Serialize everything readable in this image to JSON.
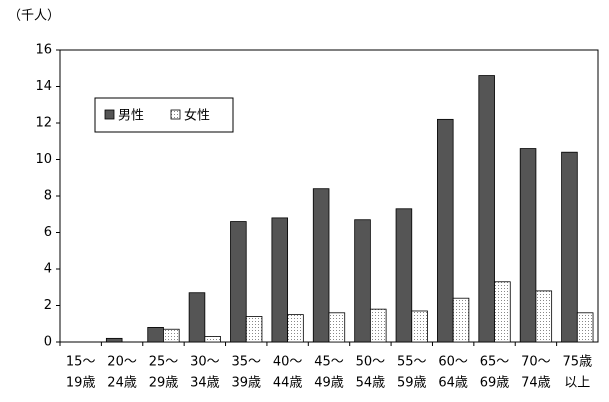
{
  "chart_data": {
    "type": "bar",
    "y_label": "（千人）",
    "categories": [
      [
        "15～",
        "19歳"
      ],
      [
        "20～",
        "24歳"
      ],
      [
        "25～",
        "29歳"
      ],
      [
        "30～",
        "34歳"
      ],
      [
        "35～",
        "39歳"
      ],
      [
        "40～",
        "44歳"
      ],
      [
        "45～",
        "49歳"
      ],
      [
        "50～",
        "54歳"
      ],
      [
        "55～",
        "59歳"
      ],
      [
        "60～",
        "64歳"
      ],
      [
        "65～",
        "69歳"
      ],
      [
        "70～",
        "74歳"
      ],
      [
        "75歳",
        "以上"
      ]
    ],
    "series": [
      {
        "name": "男性",
        "color": "#555555",
        "values": [
          0,
          0.2,
          0.8,
          2.7,
          6.6,
          6.8,
          8.4,
          6.7,
          7.3,
          12.2,
          14.6,
          10.6,
          10.4
        ]
      },
      {
        "name": "女性",
        "color": "#ffffff",
        "pattern": "dots",
        "values": [
          0,
          0,
          0.7,
          0.3,
          1.4,
          1.5,
          1.6,
          1.8,
          1.7,
          2.4,
          3.3,
          2.8,
          1.6
        ]
      }
    ],
    "ylim": [
      0,
      16
    ],
    "yticks": [
      0,
      2,
      4,
      6,
      8,
      10,
      12,
      14,
      16
    ],
    "grid": false,
    "legend": "upper-left"
  }
}
